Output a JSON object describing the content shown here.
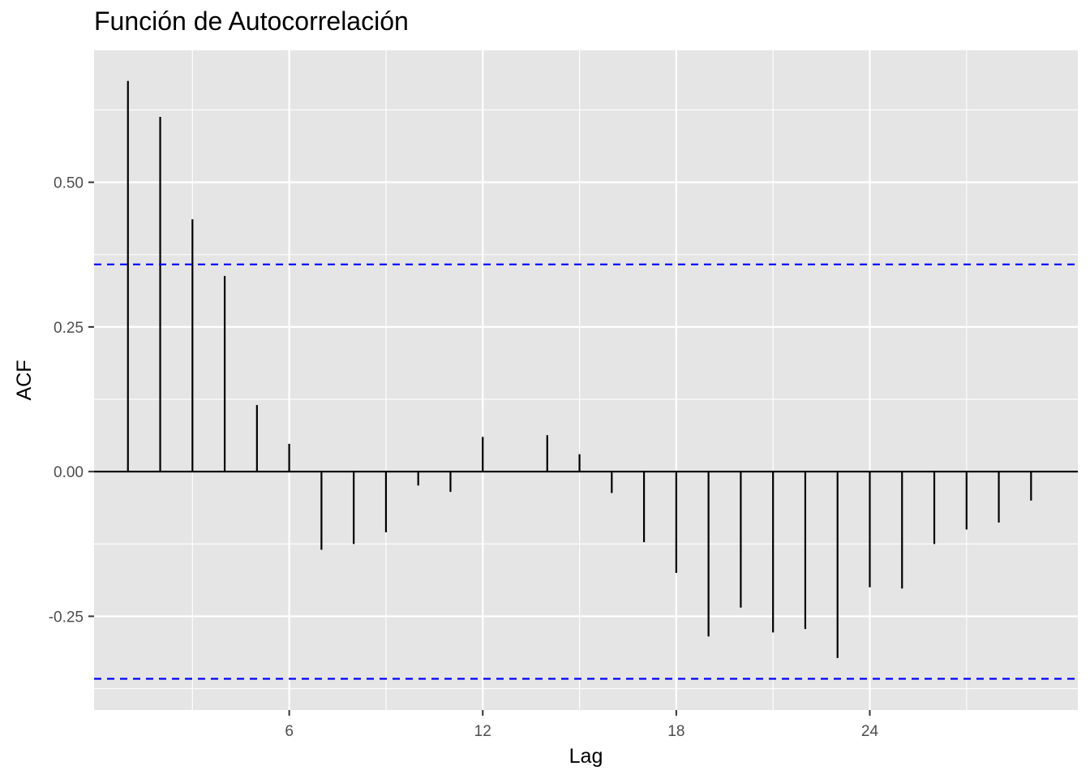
{
  "chart_data": {
    "type": "bar",
    "title": "Función de Autocorrelación",
    "xlabel": "Lag",
    "ylabel": "ACF",
    "x": [
      1,
      2,
      3,
      4,
      5,
      6,
      7,
      8,
      9,
      10,
      11,
      12,
      13,
      14,
      15,
      16,
      17,
      18,
      19,
      20,
      21,
      22,
      23,
      24,
      25,
      26,
      27,
      28,
      29
    ],
    "values": [
      0.675,
      0.613,
      0.436,
      0.338,
      0.115,
      0.048,
      -0.135,
      -0.125,
      -0.105,
      -0.024,
      -0.035,
      0.06,
      0.0,
      0.063,
      0.03,
      -0.037,
      -0.122,
      -0.175,
      -0.285,
      -0.235,
      -0.278,
      -0.272,
      -0.322,
      -0.2,
      -0.202,
      -0.125,
      -0.1,
      -0.088,
      -0.05
    ],
    "confidence_bounds": [
      0.358,
      -0.358
    ],
    "x_ticks": [
      6,
      12,
      18,
      24
    ],
    "x_tick_labels": [
      "6",
      "12",
      "18",
      "24"
    ],
    "y_ticks": [
      -0.25,
      0,
      0.25,
      0.5
    ],
    "y_tick_labels": [
      "-0.25",
      "0.00",
      "0.25",
      "0.50"
    ],
    "xlim": [
      -0.05,
      30.45
    ],
    "ylim": [
      -0.412,
      0.728
    ],
    "grid": true,
    "colors": {
      "panel": "#e5e5e5",
      "grid": "#ffffff",
      "bars": "#000000",
      "bounds": "#0000ff"
    }
  }
}
